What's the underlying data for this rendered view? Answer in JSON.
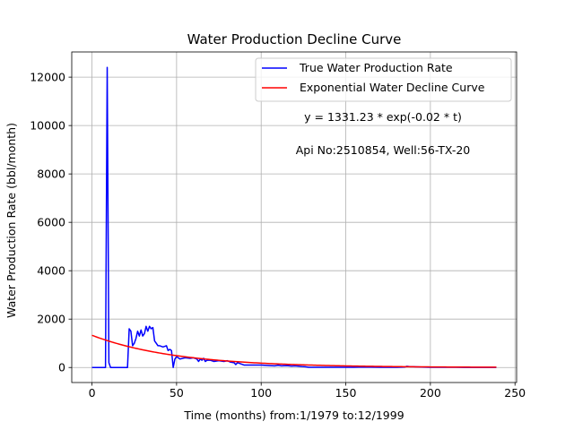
{
  "chart_data": {
    "type": "line",
    "title": "Water Production Decline Curve",
    "xlabel": "Time (months) from:1/1979 to:12/1999",
    "ylabel": "Water Production Rate (bbl/month)",
    "xlim": [
      -11.95,
      250.95
    ],
    "ylim": [
      -621,
      13041
    ],
    "xticks": [
      0,
      50,
      100,
      150,
      200,
      250
    ],
    "xtick_labels": [
      "0",
      "50",
      "100",
      "150",
      "200",
      "250"
    ],
    "yticks": [
      0,
      2000,
      4000,
      6000,
      8000,
      10000,
      12000
    ],
    "ytick_labels": [
      "0",
      "2000",
      "4000",
      "6000",
      "8000",
      "10000",
      "12000"
    ],
    "grid": true,
    "legend_position": "top-right",
    "annotations": [
      "y = 1331.23 * exp(-0.02 * t)",
      "Api No:2510854, Well:56-TX-20"
    ],
    "series": [
      {
        "name": "True Water Production Rate",
        "color": "#0000ff",
        "x": [
          0,
          8,
          9,
          10,
          11,
          20,
          21,
          22,
          23,
          24,
          25,
          26,
          27,
          28,
          29,
          30,
          31,
          32,
          33,
          34,
          35,
          36,
          37,
          38,
          39,
          40,
          42,
          44,
          45,
          46,
          47,
          48,
          49,
          50,
          52,
          55,
          58,
          60,
          62,
          63,
          64,
          65,
          66,
          67,
          68,
          70,
          72,
          75,
          78,
          80,
          82,
          84,
          85,
          86,
          88,
          90,
          95,
          100,
          105,
          108,
          110,
          112,
          115,
          118,
          120,
          124,
          126,
          128,
          130,
          140,
          150,
          155,
          160,
          170,
          180,
          185,
          186,
          188,
          190,
          195,
          200,
          210,
          220,
          230,
          239
        ],
        "y": [
          0,
          0,
          12400,
          200,
          0,
          0,
          0,
          1600,
          1500,
          900,
          1000,
          1200,
          1500,
          1300,
          1550,
          1300,
          1400,
          1700,
          1500,
          1700,
          1600,
          1650,
          1100,
          1000,
          900,
          900,
          850,
          900,
          700,
          750,
          700,
          0,
          350,
          450,
          350,
          400,
          380,
          400,
          350,
          250,
          350,
          300,
          380,
          250,
          300,
          300,
          250,
          280,
          250,
          280,
          220,
          200,
          120,
          200,
          150,
          100,
          100,
          100,
          80,
          70,
          90,
          70,
          80,
          60,
          70,
          40,
          30,
          10,
          10,
          10,
          10,
          10,
          20,
          10,
          10,
          20,
          50,
          30,
          30,
          20,
          10,
          10,
          5,
          5,
          5
        ]
      },
      {
        "name": "Exponential Water Decline Curve",
        "color": "#ff0000",
        "equation": {
          "a": 1331.23,
          "b": -0.02
        },
        "x_range": [
          0,
          239
        ]
      }
    ]
  }
}
